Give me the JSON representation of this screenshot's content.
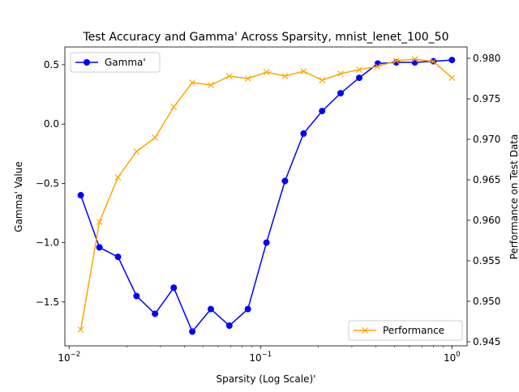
{
  "chart_data": {
    "type": "line",
    "title": "Test Accuracy and Gamma' Across Sparsity, mnist_lenet_100_50",
    "xlabel": "Sparsity (Log Scale)'",
    "ylabel_left": "Gamma' Value",
    "ylabel_right": "Performance on Test Data",
    "xscale": "log",
    "xlim": [
      0.0095,
      1.2
    ],
    "x_ticks": [
      {
        "value": 0.01,
        "base": "10",
        "exp": "−2"
      },
      {
        "value": 0.1,
        "base": "10",
        "exp": "−1"
      },
      {
        "value": 1,
        "base": "10",
        "exp": "0"
      }
    ],
    "ylim_left": [
      -1.87,
      0.65
    ],
    "y_ticks_left": [
      {
        "value": 0.5,
        "label": "0.5"
      },
      {
        "value": 0.0,
        "label": "0.0"
      },
      {
        "value": -0.5,
        "label": "−0.5"
      },
      {
        "value": -1.0,
        "label": "−1.0"
      },
      {
        "value": -1.5,
        "label": "−1.5"
      }
    ],
    "ylim_right": [
      0.9445,
      0.9814
    ],
    "y_ticks_right": [
      {
        "value": 0.98,
        "label": "0.980"
      },
      {
        "value": 0.975,
        "label": "0.975"
      },
      {
        "value": 0.97,
        "label": "0.970"
      },
      {
        "value": 0.965,
        "label": "0.965"
      },
      {
        "value": 0.96,
        "label": "0.960"
      },
      {
        "value": 0.955,
        "label": "0.955"
      },
      {
        "value": 0.95,
        "label": "0.950"
      },
      {
        "value": 0.945,
        "label": "0.945"
      }
    ],
    "x": [
      0.0115,
      0.0144,
      0.018,
      0.0225,
      0.0281,
      0.0352,
      0.044,
      0.055,
      0.0687,
      0.0859,
      0.1074,
      0.1342,
      0.1678,
      0.2097,
      0.2621,
      0.3277,
      0.4096,
      0.512,
      0.64,
      0.8,
      1.0
    ],
    "series": [
      {
        "name": "Gamma'",
        "axis": "left",
        "color": "#0000ff",
        "marker": "circle",
        "legend_position": "upper-left",
        "values": [
          -0.6,
          -1.04,
          -1.12,
          -1.45,
          -1.6,
          -1.38,
          -1.75,
          -1.56,
          -1.7,
          -1.56,
          -1.0,
          -0.48,
          -0.08,
          0.11,
          0.26,
          0.39,
          0.51,
          0.52,
          0.52,
          0.53,
          0.54
        ]
      },
      {
        "name": "Performance",
        "axis": "right",
        "color": "#ffa500",
        "marker": "x",
        "legend_position": "lower-right",
        "values": [
          0.9465,
          0.9598,
          0.9653,
          0.9685,
          0.9702,
          0.974,
          0.977,
          0.9767,
          0.9778,
          0.9775,
          0.9783,
          0.9778,
          0.9784,
          0.9773,
          0.9781,
          0.9786,
          0.979,
          0.9797,
          0.9799,
          0.9796,
          0.9776
        ]
      }
    ]
  }
}
